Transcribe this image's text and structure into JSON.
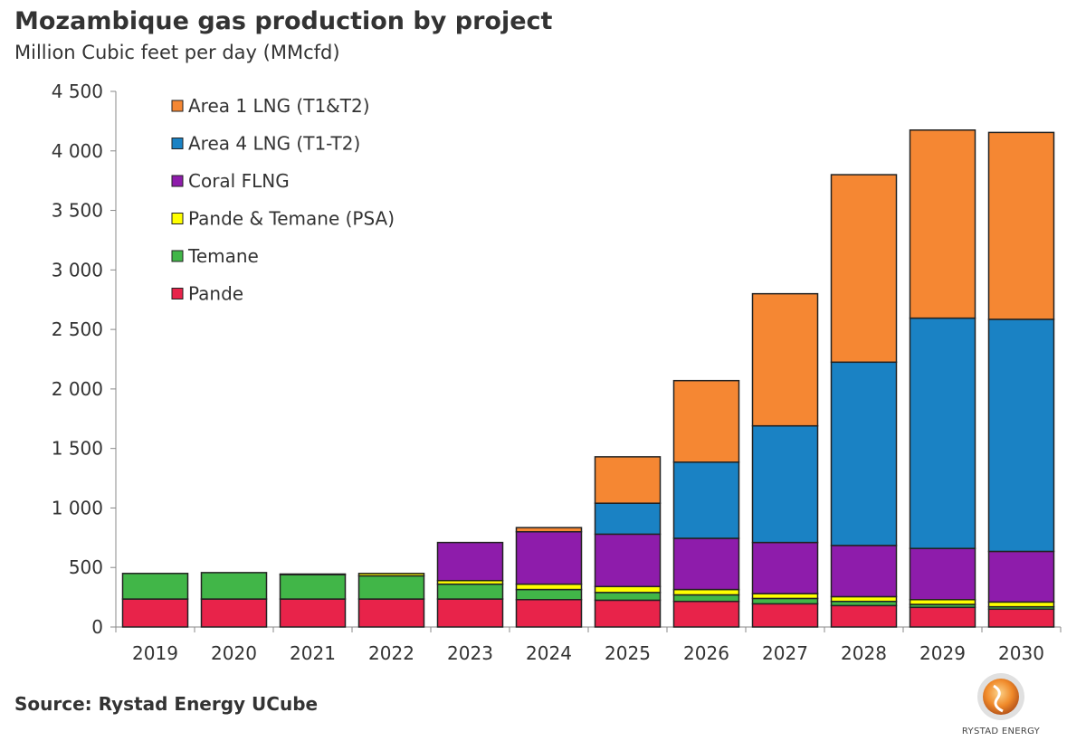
{
  "chart_data": {
    "type": "bar",
    "stacked": true,
    "title": "Mozambique gas production by project",
    "subtitle": "Million Cubic feet per day (MMcfd)",
    "categories": [
      "2019",
      "2020",
      "2021",
      "2022",
      "2023",
      "2024",
      "2025",
      "2026",
      "2027",
      "2028",
      "2029",
      "2030"
    ],
    "ylim": [
      0,
      4500
    ],
    "yticks": [
      0,
      500,
      1000,
      1500,
      2000,
      2500,
      3000,
      3500,
      4000,
      4500
    ],
    "ytick_labels": [
      "0",
      "500",
      "1 000",
      "1 500",
      "2 000",
      "2 500",
      "3 000",
      "3 500",
      "4 000",
      "4 500"
    ],
    "legend_position": "top-left",
    "series": [
      {
        "name": "Pande",
        "color": "#e8234a",
        "values": [
          235,
          235,
          235,
          235,
          235,
          230,
          225,
          215,
          195,
          180,
          165,
          150
        ]
      },
      {
        "name": "Temane",
        "color": "#41b648",
        "values": [
          215,
          222,
          205,
          195,
          125,
          85,
          65,
          55,
          45,
          35,
          25,
          20
        ]
      },
      {
        "name": "Pande & Temane (PSA)",
        "color": "#ffff00",
        "values": [
          0,
          0,
          5,
          20,
          30,
          45,
          50,
          45,
          40,
          40,
          40,
          40
        ]
      },
      {
        "name": "Coral FLNG",
        "color": "#8e1cab",
        "values": [
          0,
          0,
          0,
          0,
          320,
          440,
          440,
          430,
          430,
          430,
          430,
          425
        ]
      },
      {
        "name": "Area 4 LNG (T1-T2)",
        "color": "#1a82c4",
        "values": [
          0,
          0,
          0,
          0,
          0,
          0,
          260,
          640,
          980,
          1540,
          1935,
          1950
        ]
      },
      {
        "name": "Area 1 LNG (T1&T2)",
        "color": "#f58733",
        "values": [
          0,
          0,
          0,
          0,
          0,
          35,
          390,
          685,
          1110,
          1575,
          1580,
          1570
        ]
      }
    ]
  },
  "source": "Source: Rystad Energy UCube",
  "logo": {
    "name": "rystad-energy-logo",
    "text": "RYSTAD ENERGY"
  }
}
